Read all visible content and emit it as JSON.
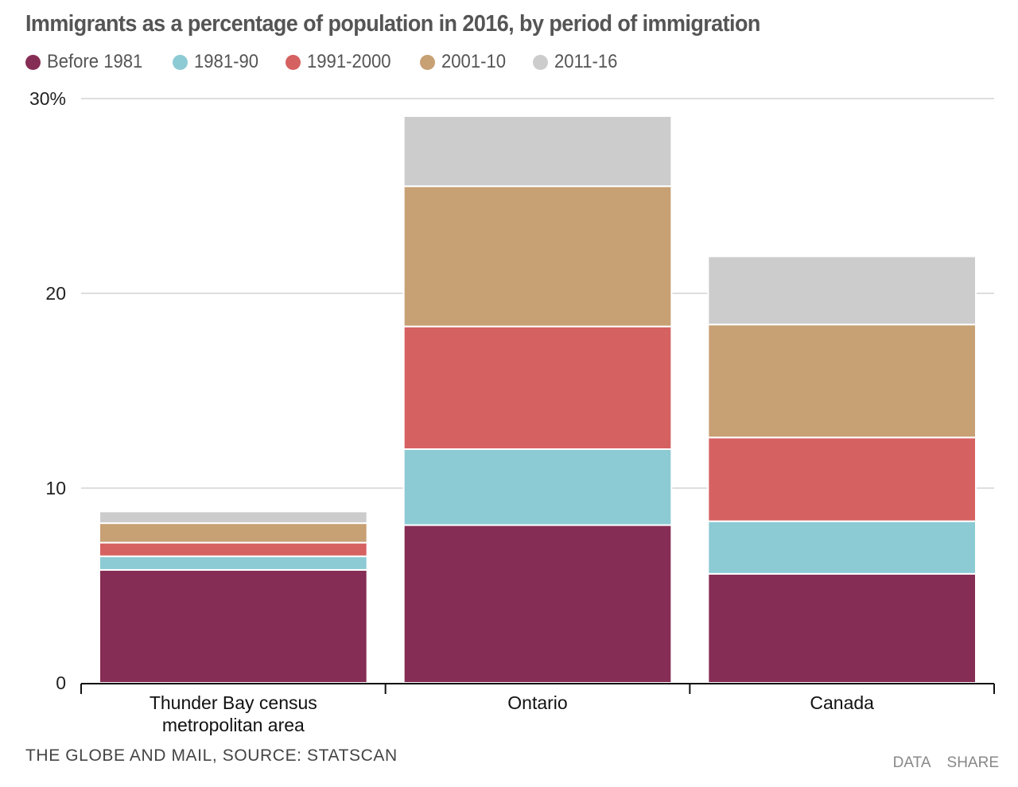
{
  "chart_data": {
    "type": "bar",
    "stacked": true,
    "title": "Immigrants as a percentage of population in 2016, by period of immigration",
    "xlabel": "",
    "ylabel": "",
    "ylim": [
      0,
      30
    ],
    "yticks": [
      0,
      10,
      20,
      30
    ],
    "ytick_labels": [
      "0",
      "10",
      "20",
      "30%"
    ],
    "grid": true,
    "legend_position": "top-left",
    "categories": [
      "Thunder Bay census metropolitan area",
      "Ontario",
      "Canada"
    ],
    "category_lines": [
      [
        "Thunder Bay census",
        "metropolitan area"
      ],
      [
        "Ontario"
      ],
      [
        "Canada"
      ]
    ],
    "series": [
      {
        "name": "Before 1981",
        "color": "#862d55",
        "values": [
          5.8,
          8.1,
          5.6
        ]
      },
      {
        "name": "1981-90",
        "color": "#8ccad4",
        "values": [
          0.7,
          3.9,
          2.7
        ]
      },
      {
        "name": "1991-2000",
        "color": "#d66161",
        "values": [
          0.7,
          6.3,
          4.3
        ]
      },
      {
        "name": "2001-10",
        "color": "#c7a074",
        "values": [
          1.0,
          7.2,
          5.8
        ]
      },
      {
        "name": "2011-16",
        "color": "#cccccc",
        "values": [
          0.6,
          3.6,
          3.5
        ]
      }
    ]
  },
  "footer": {
    "source": "THE GLOBE AND MAIL, SOURCE: STATSCAN",
    "data_link": "DATA",
    "share_link": "SHARE"
  }
}
